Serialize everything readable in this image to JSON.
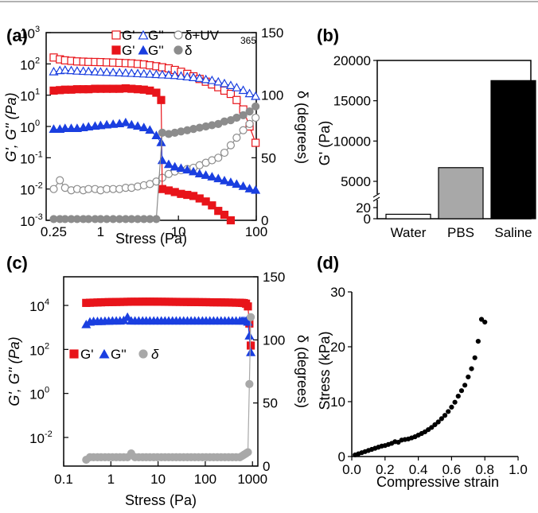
{
  "panels": {
    "a": {
      "label": "(a)",
      "xlabel": "Stress (Pa)",
      "ylabel": "G', G'' (Pa)",
      "y2label": "δ (degrees)",
      "legend": {
        "row1": [
          "G'",
          "G''",
          "δ+UV",
          "365"
        ],
        "row2": [
          "G'",
          "G''",
          "δ"
        ]
      },
      "xticks": [
        "0.25",
        "1",
        "10",
        "100"
      ],
      "yticks": [
        "10",
        "10",
        "10",
        "10",
        "10",
        "10",
        "10"
      ],
      "yexps": [
        "-3",
        "-2",
        "-1",
        "0",
        "1",
        "2",
        "3"
      ],
      "y2ticks": [
        "0",
        "50",
        "100",
        "150"
      ]
    },
    "b": {
      "label": "(b)",
      "ylabel": "G' (Pa)",
      "yticks": [
        "0",
        "20",
        "5000",
        "10000",
        "15000",
        "20000"
      ],
      "categories": [
        "Water",
        "PBS",
        "Saline"
      ]
    },
    "c": {
      "label": "(c)",
      "xlabel": "Stress (Pa)",
      "ylabel": "G', G'' (Pa)",
      "y2label": "δ (degrees)",
      "legend": [
        "G'",
        "G''",
        "δ"
      ],
      "xticks": [
        "0.1",
        "1",
        "10",
        "100",
        "1000"
      ],
      "yticks": [
        "10",
        "10",
        "10",
        "10"
      ],
      "yexps": [
        "-2",
        "0",
        "2",
        "4"
      ],
      "y2ticks": [
        "0",
        "50",
        "100",
        "150"
      ]
    },
    "d": {
      "label": "(d)",
      "xlabel": "Compressive strain",
      "ylabel": "Stress (kPa)",
      "xticks": [
        "0.0",
        "0.2",
        "0.4",
        "0.6",
        "0.8",
        "1.0"
      ],
      "yticks": [
        "0",
        "10",
        "20",
        "30"
      ]
    }
  },
  "colors": {
    "red": "#e8141a",
    "blue": "#1a3fe0",
    "gray": "#8c8c8c",
    "lightgray": "#a8a8a8",
    "black": "#000000"
  },
  "chart_data": [
    {
      "panel": "a",
      "type": "scatter",
      "xscale": "log",
      "xlim": [
        0.2,
        100
      ],
      "yscale": "log",
      "ylim": [
        0.001,
        1000
      ],
      "y2lim": [
        0,
        150
      ],
      "series": [
        {
          "name": "G'",
          "axis": "left",
          "marker": "square-open",
          "x": [
            0.25,
            0.3,
            0.35,
            0.42,
            0.5,
            0.6,
            0.7,
            0.85,
            1,
            1.2,
            1.45,
            1.75,
            2.1,
            2.5,
            3,
            3.6,
            4.3,
            5.2,
            6.2,
            7.5,
            9,
            10.8,
            13,
            15.6,
            18.7,
            22.5,
            27,
            32.5,
            39,
            47,
            56,
            68,
            82,
            98
          ],
          "y": [
            160,
            140,
            130,
            125,
            120,
            118,
            116,
            115,
            114,
            112,
            110,
            108,
            106,
            104,
            100,
            96,
            90,
            84,
            78,
            72,
            64,
            56,
            48,
            40,
            33,
            27,
            22,
            18,
            14,
            11,
            7,
            3.5,
            1,
            0.3
          ]
        },
        {
          "name": "G''",
          "axis": "left",
          "marker": "triangle-open",
          "x": [
            0.25,
            0.3,
            0.35,
            0.42,
            0.5,
            0.6,
            0.7,
            0.85,
            1,
            1.2,
            1.45,
            1.75,
            2.1,
            2.5,
            3,
            3.6,
            4.3,
            5.2,
            6.2,
            7.5,
            9,
            10.8,
            13,
            15.6,
            18.7,
            22.5,
            27,
            32.5,
            39,
            47,
            56,
            68,
            82,
            98
          ],
          "y": [
            55,
            60,
            62,
            60,
            58,
            57,
            56,
            55,
            54,
            53,
            52,
            51,
            50,
            49,
            48,
            47,
            46,
            45,
            44,
            43,
            42,
            40,
            38,
            36,
            34,
            31,
            29,
            26,
            23,
            20,
            17,
            14,
            11,
            9
          ]
        },
        {
          "name": "δ+UV365",
          "axis": "right",
          "marker": "circle-open",
          "x": [
            0.25,
            0.3,
            0.35,
            0.42,
            0.5,
            0.6,
            0.7,
            0.85,
            1,
            1.2,
            1.45,
            1.75,
            2.1,
            2.5,
            3,
            3.6,
            4.3,
            5.2,
            6.2,
            7.5,
            9,
            10.8,
            13,
            15.6,
            18.7,
            22.5,
            27,
            32.5,
            39,
            47,
            56,
            68,
            82,
            98
          ],
          "y": [
            25,
            32,
            26,
            24,
            25,
            24,
            25,
            25,
            24,
            25,
            25,
            25,
            26,
            26,
            27,
            28,
            29,
            31,
            34,
            37,
            39,
            40,
            41,
            42,
            44,
            46,
            48,
            50,
            54,
            60,
            66,
            72,
            77,
            82
          ]
        },
        {
          "name": "G'",
          "axis": "left",
          "marker": "square-filled",
          "x": [
            0.25,
            0.3,
            0.35,
            0.42,
            0.5,
            0.6,
            0.7,
            0.85,
            1,
            1.2,
            1.45,
            1.75,
            2.1,
            2.5,
            3,
            3.6,
            4.3,
            5.2,
            6,
            6.2,
            7.5,
            9,
            10.8,
            13,
            15.6,
            18.7,
            22.5,
            27,
            32.5,
            39,
            47
          ],
          "y": [
            14,
            14.5,
            15,
            15,
            15.5,
            15.5,
            15.5,
            16,
            16,
            16,
            16,
            16,
            16.5,
            16,
            15.5,
            15,
            14,
            12,
            7,
            0.01,
            0.009,
            0.008,
            0.007,
            0.0065,
            0.006,
            0.005,
            0.004,
            0.003,
            0.002,
            0.0015,
            0.001
          ]
        },
        {
          "name": "G''",
          "axis": "left",
          "marker": "triangle-filled",
          "x": [
            0.25,
            0.3,
            0.35,
            0.42,
            0.5,
            0.6,
            0.7,
            0.85,
            1,
            1.2,
            1.45,
            1.75,
            2.1,
            2.5,
            3,
            3.6,
            4.3,
            5.2,
            6,
            6.2,
            7.5,
            9,
            10.8,
            13,
            15.6,
            18.7,
            22.5,
            27,
            32.5,
            39,
            47,
            56,
            68,
            82,
            98
          ],
          "y": [
            0.8,
            0.8,
            0.85,
            0.85,
            0.85,
            0.9,
            0.95,
            1,
            1.05,
            1.1,
            1.15,
            1.2,
            1.3,
            1.1,
            1.0,
            0.9,
            0.75,
            0.5,
            0.3,
            0.08,
            0.06,
            0.05,
            0.045,
            0.04,
            0.035,
            0.03,
            0.027,
            0.024,
            0.021,
            0.018,
            0.016,
            0.014,
            0.012,
            0.01,
            0.009
          ]
        },
        {
          "name": "δ",
          "axis": "right",
          "marker": "circle-filled",
          "x": [
            0.25,
            0.3,
            0.35,
            0.42,
            0.5,
            0.6,
            0.7,
            0.85,
            1,
            1.2,
            1.45,
            1.75,
            2.1,
            2.5,
            3,
            3.6,
            4.3,
            5.2,
            6.2,
            7.5,
            9,
            10.8,
            13,
            15.6,
            18.7,
            22.5,
            27,
            32.5,
            39,
            47,
            56,
            68,
            82,
            98
          ],
          "y": [
            1,
            1,
            1,
            1,
            1,
            1,
            1,
            1,
            1,
            1,
            1,
            1,
            1,
            1,
            1,
            1,
            1,
            1,
            70,
            69,
            70,
            71,
            72,
            73,
            74,
            75,
            76,
            77,
            79,
            80,
            82,
            84,
            87,
            91
          ]
        }
      ]
    },
    {
      "panel": "b",
      "type": "bar",
      "categories": [
        "Water",
        "PBS",
        "Saline"
      ],
      "values": [
        8,
        6700,
        17500
      ],
      "ylim": [
        0,
        20000
      ],
      "colors": [
        "#ffffff",
        "#a8a8a8",
        "#000000"
      ]
    },
    {
      "panel": "c",
      "type": "scatter",
      "xscale": "log",
      "xlim": [
        0.1,
        1300
      ],
      "yscale": "log",
      "ylim": [
        0.0005,
        200000
      ],
      "y2lim": [
        0,
        150
      ],
      "series": [
        {
          "name": "G'",
          "axis": "left",
          "marker": "square-filled",
          "x": [
            0.3,
            0.36,
            0.43,
            0.52,
            0.62,
            0.75,
            0.9,
            1.08,
            1.3,
            1.56,
            1.87,
            2.25,
            2.7,
            3.24,
            3.9,
            4.7,
            5.6,
            6.7,
            8.1,
            9.7,
            11.7,
            14,
            16.8,
            20.2,
            24.2,
            29,
            34.8,
            41.8,
            50,
            60,
            72,
            87,
            104,
            125,
            150,
            180,
            216,
            260,
            312,
            374,
            449,
            539,
            600,
            660,
            730,
            800,
            860,
            920
          ],
          "y": [
            13000,
            13200,
            13400,
            13600,
            13800,
            14000,
            14100,
            14200,
            14300,
            14400,
            14500,
            14600,
            14700,
            14700,
            14700,
            14800,
            14800,
            14800,
            14800,
            14700,
            14700,
            14600,
            14600,
            14500,
            14500,
            14400,
            14400,
            14300,
            14200,
            14200,
            14100,
            14000,
            14000,
            13900,
            13800,
            13800,
            13700,
            13600,
            13500,
            13400,
            13300,
            13200,
            13000,
            12800,
            12000,
            9000,
            1500,
            150
          ]
        },
        {
          "name": "G''",
          "axis": "left",
          "marker": "triangle-filled",
          "x": [
            0.3,
            0.36,
            0.43,
            0.52,
            0.62,
            0.75,
            0.9,
            1.08,
            1.3,
            1.56,
            1.87,
            2.25,
            2.7,
            3.24,
            3.9,
            4.7,
            5.6,
            6.7,
            8.1,
            9.7,
            11.7,
            14,
            16.8,
            20.2,
            24.2,
            29,
            34.8,
            41.8,
            50,
            60,
            72,
            87,
            104,
            125,
            150,
            180,
            216,
            260,
            312,
            374,
            449,
            539,
            600,
            660,
            730,
            800,
            860,
            920
          ],
          "y": [
            1300,
            1700,
            1800,
            1800,
            1800,
            1850,
            1850,
            1900,
            1900,
            1900,
            2000,
            2800,
            1900,
            1900,
            1900,
            1900,
            1900,
            1900,
            1900,
            1900,
            1900,
            1900,
            1900,
            1900,
            1900,
            1900,
            1900,
            1900,
            1900,
            1900,
            1900,
            1900,
            1900,
            1900,
            1900,
            1900,
            1900,
            1900,
            1900,
            1900,
            1900,
            1900,
            1900,
            1900,
            1900,
            1700,
            400,
            70
          ]
        },
        {
          "name": "δ",
          "axis": "right",
          "marker": "circle-filled",
          "x": [
            0.3,
            0.36,
            0.43,
            0.52,
            0.62,
            0.75,
            0.9,
            1.08,
            1.3,
            1.56,
            1.87,
            2.25,
            2.7,
            3.24,
            3.9,
            4.7,
            5.6,
            6.7,
            8.1,
            9.7,
            11.7,
            14,
            16.8,
            20.2,
            24.2,
            29,
            34.8,
            41.8,
            50,
            60,
            72,
            87,
            104,
            125,
            150,
            180,
            216,
            260,
            312,
            374,
            449,
            539,
            600,
            660,
            730,
            800,
            860,
            920
          ],
          "y": [
            5,
            7,
            7,
            7,
            7,
            7,
            7,
            7,
            7,
            7,
            7,
            7,
            10,
            7,
            7,
            7,
            7,
            7,
            7,
            7,
            7,
            7,
            7,
            7,
            7,
            7,
            7,
            7,
            7,
            7,
            7,
            7,
            7,
            7,
            7,
            7,
            7,
            7,
            7,
            7,
            7,
            7,
            8,
            9,
            10,
            11,
            65,
            118
          ]
        }
      ]
    },
    {
      "panel": "d",
      "type": "scatter",
      "xlim": [
        0,
        1.0
      ],
      "ylim": [
        0,
        30
      ],
      "series": [
        {
          "marker": "circle-filled",
          "x": [
            0.02,
            0.04,
            0.06,
            0.08,
            0.1,
            0.12,
            0.14,
            0.16,
            0.18,
            0.2,
            0.22,
            0.24,
            0.26,
            0.28,
            0.3,
            0.32,
            0.34,
            0.36,
            0.38,
            0.4,
            0.42,
            0.44,
            0.46,
            0.48,
            0.5,
            0.52,
            0.54,
            0.56,
            0.58,
            0.6,
            0.62,
            0.64,
            0.66,
            0.68,
            0.7,
            0.72,
            0.74,
            0.76,
            0.78,
            0.8
          ],
          "y": [
            0.3,
            0.5,
            0.7,
            0.9,
            1.1,
            1.3,
            1.5,
            1.7,
            1.9,
            2.0,
            2.2,
            2.4,
            2.7,
            2.6,
            3.0,
            3.1,
            3.2,
            3.4,
            3.6,
            3.9,
            4.2,
            4.5,
            4.9,
            5.3,
            5.8,
            6.3,
            6.9,
            7.5,
            8.2,
            9.0,
            9.9,
            11,
            12,
            13,
            14.5,
            16,
            18,
            21,
            25,
            24.5
          ]
        }
      ]
    }
  ]
}
